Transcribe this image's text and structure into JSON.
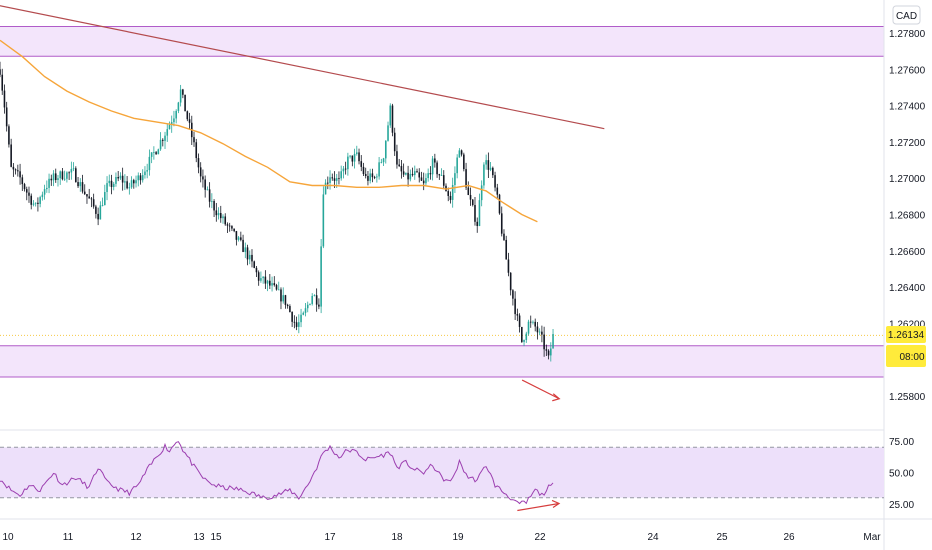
{
  "currency_badge": "CAD",
  "price_tag": "1.26134",
  "time_tag": "08:00",
  "price_axis_ticks": [
    "1.27800",
    "1.27600",
    "1.27400",
    "1.27200",
    "1.27000",
    "1.26800",
    "1.26600",
    "1.26400",
    "1.26200",
    "1.26000",
    "1.25800"
  ],
  "rsi_axis_ticks": [
    "75.00",
    "50.00",
    "25.00"
  ],
  "x_ticks": [
    "10",
    "11",
    "12",
    "13",
    "15",
    "17",
    "18",
    "19",
    "22",
    "24",
    "25",
    "26",
    "Mar"
  ],
  "colors": {
    "up": "#26a69a",
    "down": "#131722",
    "ma": "#f6a53a",
    "trendline": "#b44b4e",
    "zone_fill": "#f3e5fb",
    "zone_border": "#b05cc9",
    "rsi_line": "#9c3fb0",
    "rsi_band": "#ede0fa",
    "divergence_arrow": "#d63d3d",
    "tag_bg": "#ffeb3b"
  },
  "chart_data": {
    "type": "candlestick",
    "symbol_quote": "CAD",
    "y_axis": {
      "min": 1.257,
      "max": 1.28,
      "ticks": [
        1.278,
        1.276,
        1.274,
        1.272,
        1.27,
        1.268,
        1.266,
        1.264,
        1.262,
        1.26,
        1.258
      ]
    },
    "last_price": 1.26134,
    "zones": [
      {
        "low": 1.27672,
        "high": 1.27836
      },
      {
        "low": 1.25905,
        "high": 1.26077
      }
    ],
    "trendline": [
      {
        "i": -80,
        "price": 1.2815
      },
      {
        "i": 271,
        "price": 1.27273
      }
    ],
    "ma_200": [
      {
        "i": 0,
        "v": 1.2776
      },
      {
        "i": 10,
        "v": 1.2767
      },
      {
        "i": 20,
        "v": 1.2756
      },
      {
        "i": 30,
        "v": 1.2748
      },
      {
        "i": 40,
        "v": 1.2742
      },
      {
        "i": 50,
        "v": 1.2737
      },
      {
        "i": 60,
        "v": 1.2733
      },
      {
        "i": 70,
        "v": 1.2731
      },
      {
        "i": 80,
        "v": 1.2729
      },
      {
        "i": 90,
        "v": 1.2725
      },
      {
        "i": 100,
        "v": 1.2719
      },
      {
        "i": 110,
        "v": 1.2712
      },
      {
        "i": 120,
        "v": 1.2706
      },
      {
        "i": 130,
        "v": 1.2698
      },
      {
        "i": 140,
        "v": 1.2696
      },
      {
        "i": 150,
        "v": 1.2696
      },
      {
        "i": 160,
        "v": 1.2695
      },
      {
        "i": 170,
        "v": 1.2695
      },
      {
        "i": 180,
        "v": 1.2696
      },
      {
        "i": 190,
        "v": 1.2696
      },
      {
        "i": 200,
        "v": 1.2694
      },
      {
        "i": 210,
        "v": 1.2696
      },
      {
        "i": 218,
        "v": 1.2693
      },
      {
        "i": 225,
        "v": 1.2687
      },
      {
        "i": 234,
        "v": 1.268
      },
      {
        "i": 241,
        "v": 1.2676
      }
    ],
    "price_anchors": [
      {
        "i": 0,
        "p": 1.276
      },
      {
        "i": 2,
        "p": 1.274
      },
      {
        "i": 5,
        "p": 1.2705
      },
      {
        "i": 9,
        "p": 1.27
      },
      {
        "i": 13,
        "p": 1.269
      },
      {
        "i": 16,
        "p": 1.2684
      },
      {
        "i": 20,
        "p": 1.2695
      },
      {
        "i": 24,
        "p": 1.27
      },
      {
        "i": 28,
        "p": 1.2702
      },
      {
        "i": 33,
        "p": 1.2703
      },
      {
        "i": 38,
        "p": 1.2692
      },
      {
        "i": 44,
        "p": 1.268
      },
      {
        "i": 48,
        "p": 1.2695
      },
      {
        "i": 54,
        "p": 1.27
      },
      {
        "i": 58,
        "p": 1.2695
      },
      {
        "i": 62,
        "p": 1.27
      },
      {
        "i": 66,
        "p": 1.2707
      },
      {
        "i": 70,
        "p": 1.2716
      },
      {
        "i": 74,
        "p": 1.2725
      },
      {
        "i": 78,
        "p": 1.2735
      },
      {
        "i": 81,
        "p": 1.2748
      },
      {
        "i": 84,
        "p": 1.2733
      },
      {
        "i": 87,
        "p": 1.2718
      },
      {
        "i": 90,
        "p": 1.27
      },
      {
        "i": 94,
        "p": 1.2688
      },
      {
        "i": 98,
        "p": 1.268
      },
      {
        "i": 104,
        "p": 1.267
      },
      {
        "i": 110,
        "p": 1.266
      },
      {
        "i": 116,
        "p": 1.2645
      },
      {
        "i": 122,
        "p": 1.264
      },
      {
        "i": 128,
        "p": 1.2632
      },
      {
        "i": 133,
        "p": 1.2618
      },
      {
        "i": 136,
        "p": 1.2624
      },
      {
        "i": 140,
        "p": 1.2636
      },
      {
        "i": 143,
        "p": 1.2632
      },
      {
        "i": 145,
        "p": 1.2694
      },
      {
        "i": 148,
        "p": 1.2702
      },
      {
        "i": 152,
        "p": 1.2698
      },
      {
        "i": 156,
        "p": 1.271
      },
      {
        "i": 160,
        "p": 1.2712
      },
      {
        "i": 164,
        "p": 1.27
      },
      {
        "i": 168,
        "p": 1.27
      },
      {
        "i": 172,
        "p": 1.2713
      },
      {
        "i": 175,
        "p": 1.2738
      },
      {
        "i": 178,
        "p": 1.2706
      },
      {
        "i": 182,
        "p": 1.27
      },
      {
        "i": 186,
        "p": 1.2702
      },
      {
        "i": 190,
        "p": 1.2696
      },
      {
        "i": 194,
        "p": 1.2708
      },
      {
        "i": 198,
        "p": 1.27
      },
      {
        "i": 202,
        "p": 1.2688
      },
      {
        "i": 206,
        "p": 1.2718
      },
      {
        "i": 210,
        "p": 1.269
      },
      {
        "i": 214,
        "p": 1.2675
      },
      {
        "i": 217,
        "p": 1.271
      },
      {
        "i": 220,
        "p": 1.2705
      },
      {
        "i": 223,
        "p": 1.2688
      },
      {
        "i": 226,
        "p": 1.2663
      },
      {
        "i": 229,
        "p": 1.264
      },
      {
        "i": 232,
        "p": 1.2622
      },
      {
        "i": 234,
        "p": 1.261
      },
      {
        "i": 237,
        "p": 1.262
      },
      {
        "i": 240,
        "p": 1.2618
      },
      {
        "i": 243,
        "p": 1.2611
      },
      {
        "i": 246,
        "p": 1.26
      },
      {
        "i": 248,
        "p": 1.2613
      }
    ],
    "rsi": {
      "y_min": 18,
      "y_max": 80,
      "overbought": 70,
      "oversold": 30,
      "anchors": [
        {
          "i": 0,
          "v": 45
        },
        {
          "i": 5,
          "v": 36
        },
        {
          "i": 9,
          "v": 32
        },
        {
          "i": 13,
          "v": 40
        },
        {
          "i": 18,
          "v": 36
        },
        {
          "i": 24,
          "v": 50
        },
        {
          "i": 28,
          "v": 40
        },
        {
          "i": 34,
          "v": 46
        },
        {
          "i": 40,
          "v": 38
        },
        {
          "i": 44,
          "v": 54
        },
        {
          "i": 48,
          "v": 42
        },
        {
          "i": 54,
          "v": 36
        },
        {
          "i": 58,
          "v": 34
        },
        {
          "i": 62,
          "v": 40
        },
        {
          "i": 66,
          "v": 52
        },
        {
          "i": 70,
          "v": 62
        },
        {
          "i": 74,
          "v": 71
        },
        {
          "i": 76,
          "v": 67
        },
        {
          "i": 78,
          "v": 72
        },
        {
          "i": 80,
          "v": 76
        },
        {
          "i": 82,
          "v": 68
        },
        {
          "i": 85,
          "v": 60
        },
        {
          "i": 88,
          "v": 52
        },
        {
          "i": 92,
          "v": 44
        },
        {
          "i": 96,
          "v": 40
        },
        {
          "i": 100,
          "v": 38
        },
        {
          "i": 106,
          "v": 37
        },
        {
          "i": 112,
          "v": 34
        },
        {
          "i": 118,
          "v": 30
        },
        {
          "i": 124,
          "v": 32
        },
        {
          "i": 130,
          "v": 36
        },
        {
          "i": 134,
          "v": 30
        },
        {
          "i": 138,
          "v": 40
        },
        {
          "i": 142,
          "v": 54
        },
        {
          "i": 145,
          "v": 66
        },
        {
          "i": 148,
          "v": 70
        },
        {
          "i": 152,
          "v": 62
        },
        {
          "i": 156,
          "v": 68
        },
        {
          "i": 160,
          "v": 66
        },
        {
          "i": 164,
          "v": 60
        },
        {
          "i": 168,
          "v": 62
        },
        {
          "i": 172,
          "v": 64
        },
        {
          "i": 175,
          "v": 66
        },
        {
          "i": 178,
          "v": 54
        },
        {
          "i": 182,
          "v": 58
        },
        {
          "i": 186,
          "v": 52
        },
        {
          "i": 190,
          "v": 50
        },
        {
          "i": 194,
          "v": 56
        },
        {
          "i": 198,
          "v": 46
        },
        {
          "i": 202,
          "v": 42
        },
        {
          "i": 206,
          "v": 58
        },
        {
          "i": 210,
          "v": 46
        },
        {
          "i": 214,
          "v": 44
        },
        {
          "i": 218,
          "v": 56
        },
        {
          "i": 222,
          "v": 40
        },
        {
          "i": 226,
          "v": 34
        },
        {
          "i": 229,
          "v": 30
        },
        {
          "i": 232,
          "v": 25
        },
        {
          "i": 236,
          "v": 26
        },
        {
          "i": 240,
          "v": 36
        },
        {
          "i": 243,
          "v": 32
        },
        {
          "i": 246,
          "v": 38
        },
        {
          "i": 248,
          "v": 40
        }
      ]
    },
    "divergence": {
      "price": {
        "from": {
          "i": 244,
          "p": 1.2591
        },
        "to": {
          "i": 249,
          "p": 1.2584
        }
      },
      "rsi": {
        "from": {
          "i": 232,
          "v": 23
        },
        "to": {
          "i": 248,
          "v": 27
        }
      }
    }
  }
}
